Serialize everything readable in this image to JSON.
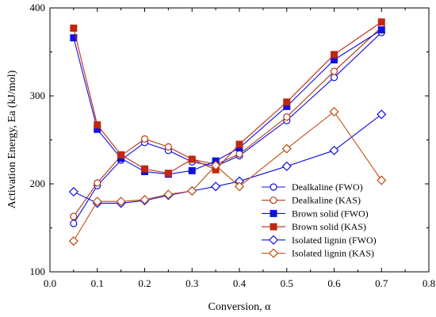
{
  "chart_data": {
    "type": "line",
    "title": "",
    "xlabel": "Conversion, α",
    "ylabel": "Activation Energy, Ea (kJ/mol)",
    "xlim": [
      0.0,
      0.8
    ],
    "ylim": [
      100,
      400
    ],
    "xticks": [
      0.0,
      0.1,
      0.2,
      0.3,
      0.4,
      0.5,
      0.6,
      0.7,
      0.8
    ],
    "xtick_labels": [
      "0.0",
      "0.1",
      "0.2",
      "0.3",
      "0.4",
      "0.5",
      "0.6",
      "0.7",
      "0.8"
    ],
    "yticks": [
      100,
      200,
      300,
      400
    ],
    "ytick_labels": [
      "100",
      "200",
      "300",
      "400"
    ],
    "grid": false,
    "legend_position": "bottom-right",
    "series": [
      {
        "name": "Dealkaline (FWO)",
        "color": "#1010e0",
        "marker": "circle-open",
        "x": [
          0.05,
          0.1,
          0.15,
          0.2,
          0.25,
          0.3,
          0.35,
          0.4,
          0.5,
          0.6,
          0.7
        ],
        "y": [
          155,
          198,
          227,
          247,
          238,
          225,
          220,
          232,
          272,
          321,
          372
        ]
      },
      {
        "name": "Dealkaline (KAS)",
        "color": "#b03a10",
        "marker": "circle-open",
        "x": [
          0.05,
          0.1,
          0.15,
          0.2,
          0.25,
          0.3,
          0.35,
          0.4,
          0.5,
          0.6,
          0.7
        ],
        "y": [
          163,
          201,
          232,
          251,
          242,
          228,
          222,
          234,
          276,
          328,
          378
        ]
      },
      {
        "name": "Brown solid (FWO)",
        "color": "#1010e0",
        "marker": "square-filled",
        "x": [
          0.05,
          0.1,
          0.15,
          0.2,
          0.25,
          0.3,
          0.35,
          0.4,
          0.5,
          0.6,
          0.7
        ],
        "y": [
          366,
          262,
          229,
          214,
          211,
          215,
          226,
          241,
          288,
          341,
          375
        ]
      },
      {
        "name": "Brown solid (KAS)",
        "color": "#c02810",
        "marker": "square-filled",
        "x": [
          0.05,
          0.1,
          0.15,
          0.2,
          0.25,
          0.3,
          0.35,
          0.4,
          0.5,
          0.6,
          0.7
        ],
        "y": [
          377,
          267,
          233,
          217,
          212,
          228,
          216,
          245,
          293,
          347,
          384
        ]
      },
      {
        "name": "Isolated lignin (FWO)",
        "color": "#1010e0",
        "marker": "diamond-open",
        "x": [
          0.05,
          0.1,
          0.15,
          0.2,
          0.25,
          0.3,
          0.35,
          0.4,
          0.5,
          0.6,
          0.7
        ],
        "y": [
          191,
          178,
          178,
          181,
          187,
          192,
          197,
          203,
          220,
          238,
          279
        ]
      },
      {
        "name": "Isolated lignin (KAS)",
        "color": "#c04a10",
        "marker": "diamond-open",
        "x": [
          0.05,
          0.1,
          0.15,
          0.2,
          0.25,
          0.3,
          0.35,
          0.4,
          0.5,
          0.6,
          0.7
        ],
        "y": [
          135,
          180,
          180,
          182,
          188,
          192,
          221,
          197,
          240,
          282,
          204
        ]
      }
    ]
  }
}
